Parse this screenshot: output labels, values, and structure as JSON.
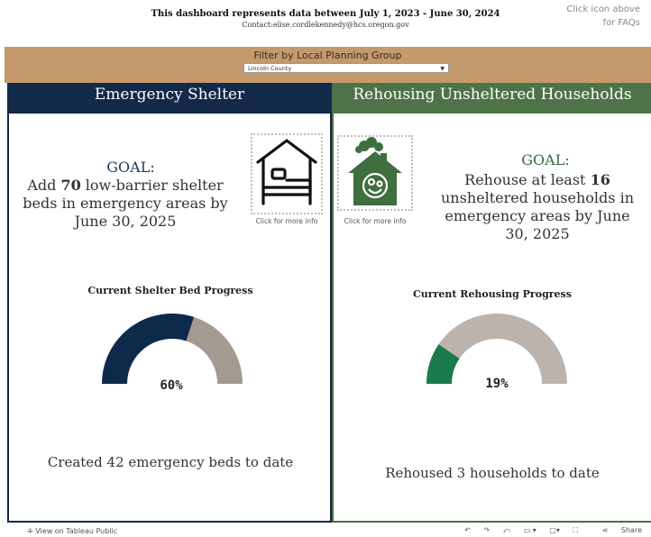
{
  "header": {
    "title": "This dashboard represents data between July 1, 2023 -  June 30, 2024",
    "contact": "Contact:elise.cordlekennedy@hcs.oregon.gov",
    "faq_line1": "Click icon above",
    "faq_line2": "for FAQs"
  },
  "filter": {
    "title": "Filter by Local Planning Group",
    "selected": "Lincoln County"
  },
  "shelter": {
    "heading": "Emergency Shelter",
    "goal_label": "GOAL:",
    "goal_pre": "Add ",
    "goal_number": "70",
    "goal_post": " low-barrier shelter beds in emergency areas by June 30, 2025",
    "icon": "bed-icon",
    "click_info": "Click for more info",
    "progress_title": "Current Shelter Bed Progress",
    "progress_pct": "60%",
    "progress_fraction": 0.6,
    "summary": "Created 42 emergency beds to date",
    "colors": {
      "filled": "#0d2a4a",
      "remaining": "#a39b90"
    }
  },
  "rehousing": {
    "heading": "Rehousing Unsheltered Households",
    "goal_label": "GOAL:",
    "goal_pre": "Rehouse at least ",
    "goal_number": "16",
    "goal_post": " unsheltered households in emergency areas by June 30, 2025",
    "icon": "house-family-icon",
    "click_info": "Click for more info",
    "progress_title": "Current Rehousing Progress",
    "progress_pct": "19%",
    "progress_fraction": 0.19,
    "summary": "Rehoused 3 households to date",
    "colors": {
      "filled": "#1a7a4a",
      "remaining": "#bcb3ad"
    }
  },
  "footer": {
    "tableau_link": "View on Tableau Public",
    "share": "Share"
  },
  "colors": {
    "filter_band": "#c49a6c",
    "shelter_header": "#12294a",
    "rehouse_header": "#4e7348"
  }
}
